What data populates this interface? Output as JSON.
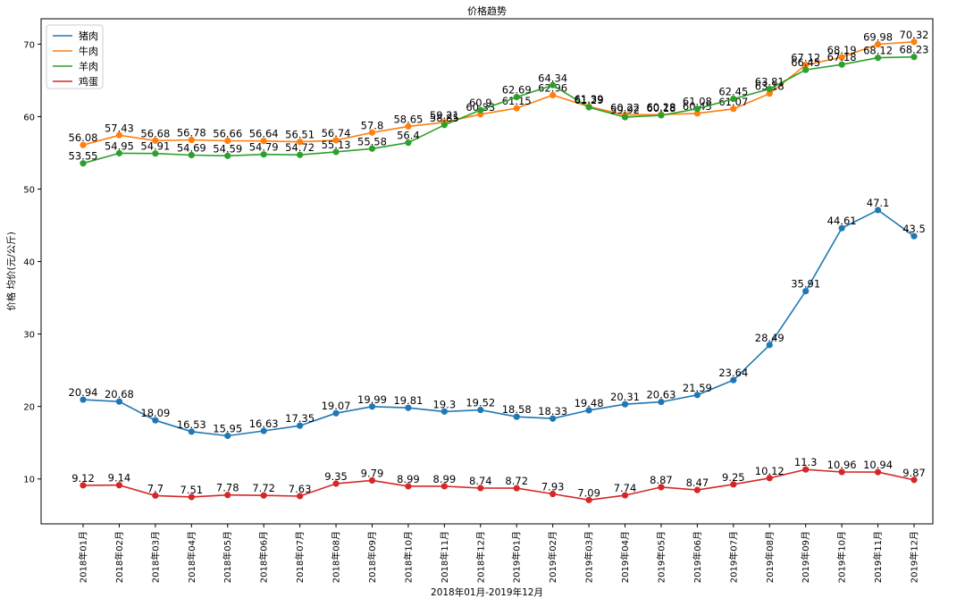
{
  "chart_data": {
    "type": "line",
    "title": "价格趋势",
    "xlabel": "2018年01月-2019年12月",
    "ylabel": "价格 均价(元/公斤)",
    "ylim": [
      3.8,
      73.5
    ],
    "yticks": [
      10,
      20,
      30,
      40,
      50,
      60,
      70
    ],
    "grid": false,
    "legend_position": "top-left",
    "categories": [
      "2018年01月",
      "2018年02月",
      "2018年03月",
      "2018年04月",
      "2018年05月",
      "2018年06月",
      "2018年07月",
      "2018年08月",
      "2018年09月",
      "2018年10月",
      "2018年11月",
      "2018年12月",
      "2019年01月",
      "2019年02月",
      "2019年03月",
      "2019年04月",
      "2019年05月",
      "2019年06月",
      "2019年07月",
      "2019年08月",
      "2019年09月",
      "2019年10月",
      "2019年11月",
      "2019年12月"
    ],
    "series": [
      {
        "name": "猪肉",
        "color": "#1f77b4",
        "values": [
          20.94,
          20.68,
          18.09,
          16.53,
          15.95,
          16.63,
          17.35,
          19.07,
          19.99,
          19.81,
          19.3,
          19.52,
          18.58,
          18.33,
          19.48,
          20.31,
          20.63,
          21.59,
          23.64,
          28.49,
          35.91,
          44.61,
          47.1,
          43.5
        ]
      },
      {
        "name": "牛肉",
        "color": "#ff7f0e",
        "values": [
          56.08,
          57.43,
          56.68,
          56.78,
          56.66,
          56.64,
          56.51,
          56.74,
          57.8,
          58.65,
          59.21,
          60.33,
          61.15,
          62.96,
          61.39,
          60.22,
          60.28,
          60.45,
          61.07,
          63.18,
          67.12,
          68.19,
          69.98,
          70.32
        ]
      },
      {
        "name": "羊肉",
        "color": "#2ca02c",
        "values": [
          53.55,
          54.95,
          54.91,
          54.69,
          54.59,
          54.79,
          54.72,
          55.13,
          55.58,
          56.4,
          58.85,
          60.9,
          62.69,
          64.34,
          61.29,
          59.92,
          60.18,
          61.08,
          62.45,
          63.81,
          66.45,
          67.18,
          68.12,
          68.23
        ]
      },
      {
        "name": "鸡蛋",
        "color": "#d62728",
        "values": [
          9.12,
          9.14,
          7.7,
          7.51,
          7.78,
          7.72,
          7.63,
          9.35,
          9.79,
          8.99,
          8.99,
          8.74,
          8.72,
          7.93,
          7.09,
          7.74,
          8.87,
          8.47,
          9.25,
          10.12,
          11.3,
          10.96,
          10.94,
          9.87
        ]
      }
    ]
  }
}
